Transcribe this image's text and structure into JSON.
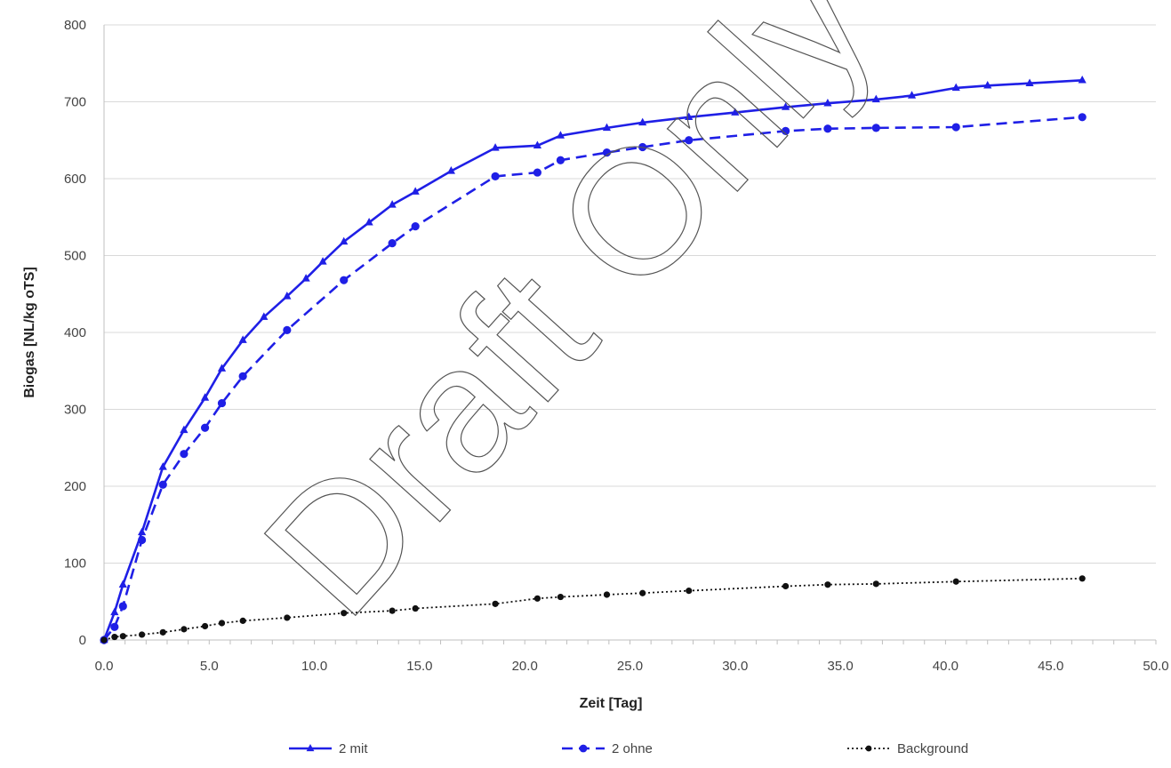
{
  "watermark": "Draft Only",
  "chart_data": {
    "type": "line",
    "title": "",
    "xlabel": "Zeit [Tag]",
    "ylabel": "Biogas [NL/kg oTS]",
    "xlim": [
      0,
      50
    ],
    "ylim": [
      0,
      800
    ],
    "xticks": [
      "0.0",
      "5.0",
      "10.0",
      "15.0",
      "20.0",
      "25.0",
      "30.0",
      "35.0",
      "40.0",
      "45.0",
      "50.0"
    ],
    "yticks": [
      "0",
      "100",
      "200",
      "300",
      "400",
      "500",
      "600",
      "700",
      "800"
    ],
    "grid": "horizontal",
    "legend": "bottom",
    "series": [
      {
        "name": "2 mit",
        "color": "#1f1fe6",
        "dash": "solid",
        "marker": "triangle",
        "x": [
          0,
          0.5,
          0.9,
          1.8,
          2.8,
          3.8,
          4.8,
          5.6,
          6.6,
          7.6,
          8.7,
          9.6,
          10.4,
          11.4,
          12.6,
          13.7,
          14.8,
          16.5,
          18.6,
          20.6,
          21.7,
          23.9,
          25.6,
          27.8,
          30,
          32.4,
          34.4,
          36.7,
          38.4,
          40.5,
          42,
          44,
          46.5
        ],
        "y": [
          0,
          36,
          72,
          140,
          225,
          273,
          315,
          353,
          390,
          420,
          447,
          470,
          492,
          518,
          543,
          566,
          583,
          610,
          640,
          643,
          656,
          666,
          673,
          680,
          686,
          693,
          698,
          703,
          708,
          718,
          721,
          724,
          728
        ]
      },
      {
        "name": "2 ohne",
        "color": "#1f1fe6",
        "dash": "dashed",
        "marker": "circle",
        "x": [
          0,
          0.5,
          0.9,
          1.8,
          2.8,
          3.8,
          4.8,
          5.6,
          6.6,
          8.7,
          11.4,
          13.7,
          14.8,
          18.6,
          20.6,
          21.7,
          23.9,
          25.6,
          27.8,
          32.4,
          34.4,
          36.7,
          40.5,
          46.5
        ],
        "y": [
          0,
          17,
          44,
          130,
          202,
          242,
          276,
          308,
          343,
          403,
          468,
          516,
          538,
          603,
          608,
          624,
          634,
          641,
          650,
          662,
          665,
          666,
          667,
          680
        ]
      },
      {
        "name": "Background",
        "color": "#111111",
        "dash": "dotted",
        "marker": "circle",
        "x": [
          0,
          0.5,
          0.9,
          1.8,
          2.8,
          3.8,
          4.8,
          5.6,
          6.6,
          8.7,
          11.4,
          13.7,
          14.8,
          18.6,
          20.6,
          21.7,
          23.9,
          25.6,
          27.8,
          32.4,
          34.4,
          36.7,
          40.5,
          46.5
        ],
        "y": [
          0,
          4,
          5,
          7,
          10,
          14,
          18,
          22,
          25,
          29,
          35,
          38,
          41,
          47,
          54,
          56,
          59,
          61,
          64,
          70,
          72,
          73,
          76,
          80
        ]
      }
    ]
  }
}
